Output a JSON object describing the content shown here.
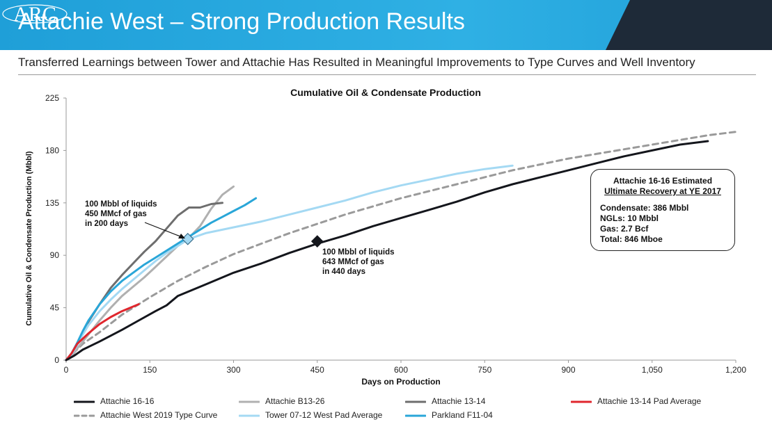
{
  "header": {
    "title": "Attachie West – Strong Production Results",
    "logo_text": "ARC",
    "subtitle": "Transferred Learnings between Tower and Attachie Has Resulted in Meaningful Improvements to Type Curves and Well Inventory"
  },
  "colors": {
    "banner_blue": "#1fa4dc",
    "banner_dark": "#1e2a38"
  },
  "chart_data": {
    "type": "line",
    "title": "Cumulative Oil & Condensate Production",
    "xlabel": "Days on Production",
    "ylabel": "Cumulative Oil & Condensate Production (Mbbl)",
    "xlim": [
      0,
      1200
    ],
    "ylim": [
      0,
      225
    ],
    "x_ticks": [
      0,
      150,
      300,
      450,
      600,
      750,
      900,
      1050,
      1200
    ],
    "x_tick_labels": [
      "0",
      "150",
      "300",
      "450",
      "600",
      "750",
      "900",
      "1,050",
      "1,200"
    ],
    "y_ticks": [
      0,
      45,
      90,
      135,
      180,
      225
    ],
    "y_tick_labels": [
      "0",
      "45",
      "90",
      "135",
      "180",
      "225"
    ],
    "grid": false,
    "legend_position": "bottom",
    "series": [
      {
        "name": "Attachie 16-16",
        "color": "#14161c",
        "dash": false,
        "width": 3,
        "x": [
          0,
          15,
          30,
          60,
          100,
          130,
          160,
          180,
          200,
          250,
          300,
          350,
          400,
          450,
          500,
          550,
          600,
          650,
          700,
          750,
          800,
          850,
          900,
          950,
          1000,
          1050,
          1100,
          1150
        ],
        "y": [
          0,
          4,
          9,
          16,
          26,
          34,
          42,
          47,
          55,
          65,
          75,
          83,
          92,
          100,
          107,
          115,
          122,
          129,
          136,
          144,
          151,
          157,
          163,
          169,
          175,
          180,
          185,
          188
        ]
      },
      {
        "name": "Attachie B13-26",
        "color": "#b0b0b0",
        "dash": false,
        "width": 3,
        "x": [
          0,
          10,
          20,
          40,
          60,
          80,
          100,
          120,
          140,
          160,
          180,
          200,
          220,
          240,
          260,
          280,
          300
        ],
        "y": [
          0,
          3,
          10,
          22,
          34,
          45,
          55,
          63,
          71,
          80,
          89,
          98,
          105,
          115,
          130,
          142,
          149
        ]
      },
      {
        "name": "Attachie 13-14",
        "color": "#6e6e6e",
        "dash": false,
        "width": 3,
        "x": [
          0,
          10,
          20,
          30,
          40,
          60,
          80,
          100,
          120,
          140,
          160,
          180,
          200,
          220,
          240,
          260,
          280
        ],
        "y": [
          0,
          5,
          14,
          24,
          33,
          48,
          62,
          73,
          83,
          93,
          102,
          113,
          124,
          131,
          131,
          134,
          135
        ]
      },
      {
        "name": "Attachie 13-14 Pad Average",
        "color": "#e0262d",
        "dash": false,
        "width": 3,
        "x": [
          0,
          10,
          20,
          40,
          60,
          80,
          100,
          130
        ],
        "y": [
          0,
          6,
          14,
          23,
          31,
          37,
          42,
          48
        ]
      },
      {
        "name": "Attachie West 2019 Type Curve",
        "color": "#9a9a9a",
        "dash": true,
        "width": 3,
        "x": [
          0,
          15,
          30,
          60,
          100,
          150,
          200,
          250,
          300,
          350,
          400,
          450,
          500,
          550,
          600,
          650,
          700,
          750,
          800,
          850,
          900,
          950,
          1000,
          1050,
          1100,
          1150,
          1200
        ],
        "y": [
          0,
          7,
          14,
          24,
          39,
          54,
          68,
          80,
          91,
          100,
          109,
          117,
          125,
          132,
          139,
          145,
          151,
          157,
          163,
          168,
          173,
          177,
          181,
          185,
          189,
          193,
          196
        ]
      },
      {
        "name": "Tower 07-12 West Pad Average",
        "color": "#a4d9f3",
        "dash": false,
        "width": 3,
        "x": [
          0,
          10,
          20,
          30,
          40,
          60,
          80,
          100,
          120,
          140,
          160,
          180,
          200,
          220,
          250,
          300,
          350,
          400,
          450,
          500,
          550,
          600,
          650,
          700,
          750,
          800
        ],
        "y": [
          0,
          5,
          13,
          22,
          30,
          42,
          52,
          61,
          69,
          77,
          85,
          92,
          98,
          104,
          109,
          114,
          119,
          125,
          131,
          137,
          144,
          150,
          155,
          160,
          164,
          167
        ]
      },
      {
        "name": "Parkland F11-04",
        "color": "#29a6d8",
        "dash": false,
        "width": 3,
        "x": [
          0,
          10,
          20,
          30,
          40,
          60,
          80,
          100,
          120,
          140,
          160,
          180,
          200,
          220,
          240,
          260,
          280,
          300,
          320,
          340
        ],
        "y": [
          0,
          6,
          15,
          25,
          34,
          48,
          59,
          68,
          75,
          82,
          88,
          94,
          100,
          106,
          112,
          118,
          123,
          128,
          133,
          139
        ]
      }
    ],
    "markers": [
      {
        "x": 218,
        "y": 104,
        "shape": "diamond",
        "fill": "#a4d9f3",
        "stroke": "#3a6e8a"
      },
      {
        "x": 450,
        "y": 102,
        "shape": "diamond",
        "fill": "#14161c",
        "stroke": "#14161c"
      }
    ],
    "annotations": [
      {
        "lines": [
          "100 Mbbl of liquids",
          "450 MMcf of gas",
          "in 200 days"
        ]
      },
      {
        "lines": [
          "100 Mbbl of liquids",
          "643 MMcf of gas",
          "in 440 days"
        ]
      }
    ],
    "callout": {
      "title_line1": "Attachie 16-16 Estimated",
      "title_line2": "Ultimate Recovery at YE 2017",
      "lines": [
        "Condensate: 386 Mbbl",
        "NGLs: 10 Mbbl",
        "Gas: 2.7 Bcf",
        "Total: 846 Mboe"
      ]
    }
  }
}
